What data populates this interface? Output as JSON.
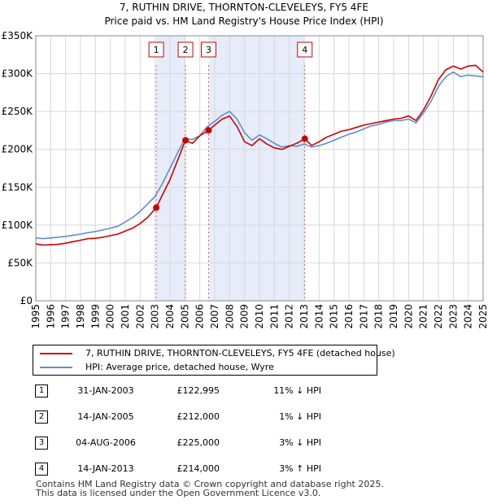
{
  "chart_data": {
    "type": "line",
    "title": [
      "7, RUTHIN DRIVE, THORNTON-CLEVELEYS, FY5 4FE",
      "Price paid vs. HM Land Registry's House Price Index (HPI)"
    ],
    "xlabel": "",
    "ylabel": "",
    "xlim": [
      1995,
      2025
    ],
    "ylim": [
      0,
      350000
    ],
    "x_ticks": [
      "1995",
      "1996",
      "1997",
      "1998",
      "1999",
      "2000",
      "2001",
      "2002",
      "2003",
      "2004",
      "2005",
      "2006",
      "2007",
      "2008",
      "2009",
      "2010",
      "2011",
      "2012",
      "2013",
      "2014",
      "2015",
      "2016",
      "2017",
      "2018",
      "2019",
      "2020",
      "2021",
      "2022",
      "2023",
      "2024",
      "2025"
    ],
    "y_ticks": [
      {
        "value": 0,
        "label": "£0"
      },
      {
        "value": 50000,
        "label": "£50K"
      },
      {
        "value": 100000,
        "label": "£100K"
      },
      {
        "value": 150000,
        "label": "£150K"
      },
      {
        "value": 200000,
        "label": "£200K"
      },
      {
        "value": 250000,
        "label": "£250K"
      },
      {
        "value": 300000,
        "label": "£300K"
      },
      {
        "value": 350000,
        "label": "£350K"
      }
    ],
    "shaded_ranges": [
      [
        2003.08,
        2005.04
      ],
      [
        2006.59,
        2013.04
      ]
    ],
    "series": [
      {
        "name": "7, RUTHIN DRIVE, THORNTON-CLEVELEYS, FY5 4FE (detached house)",
        "color": "#cc0000",
        "x": [
          1995.0,
          1995.5,
          1996.0,
          1996.5,
          1997.0,
          1997.5,
          1998.0,
          1998.5,
          1999.0,
          1999.5,
          2000.0,
          2000.5,
          2001.0,
          2001.5,
          2002.0,
          2002.5,
          2003.08,
          2003.5,
          2004.0,
          2004.5,
          2005.04,
          2005.5,
          2006.0,
          2006.59,
          2007.0,
          2007.5,
          2008.0,
          2008.5,
          2009.0,
          2009.5,
          2010.0,
          2010.5,
          2011.0,
          2011.5,
          2012.0,
          2012.5,
          2013.04,
          2013.5,
          2014.0,
          2014.5,
          2015.0,
          2015.5,
          2016.0,
          2016.5,
          2017.0,
          2017.5,
          2018.0,
          2018.5,
          2019.0,
          2019.5,
          2020.0,
          2020.5,
          2021.0,
          2021.5,
          2022.0,
          2022.5,
          2023.0,
          2023.5,
          2024.0,
          2024.5,
          2025.0
        ],
        "values": [
          75000,
          73500,
          74000,
          74500,
          76000,
          78000,
          80000,
          82000,
          82500,
          84000,
          86000,
          88000,
          92000,
          96000,
          102000,
          110000,
          122995,
          140000,
          160000,
          185000,
          212000,
          208000,
          218000,
          225000,
          232000,
          240000,
          244000,
          230000,
          210000,
          205000,
          214000,
          207000,
          202000,
          200000,
          204000,
          208000,
          214000,
          205000,
          210000,
          216000,
          220000,
          224000,
          226000,
          229000,
          232000,
          234000,
          236000,
          238000,
          240000,
          241000,
          244000,
          238000,
          252000,
          270000,
          292000,
          305000,
          310000,
          306000,
          310000,
          311000,
          302000
        ]
      },
      {
        "name": "HPI: Average price, detached house, Wyre",
        "color": "#5b8fd0",
        "x": [
          1995.0,
          1995.5,
          1996.0,
          1996.5,
          1997.0,
          1997.5,
          1998.0,
          1998.5,
          1999.0,
          1999.5,
          2000.0,
          2000.5,
          2001.0,
          2001.5,
          2002.0,
          2002.5,
          2003.0,
          2003.5,
          2004.0,
          2004.5,
          2005.0,
          2005.5,
          2006.0,
          2006.5,
          2007.0,
          2007.5,
          2008.0,
          2008.5,
          2009.0,
          2009.5,
          2010.0,
          2010.5,
          2011.0,
          2011.5,
          2012.0,
          2012.5,
          2013.0,
          2013.5,
          2014.0,
          2014.5,
          2015.0,
          2015.5,
          2016.0,
          2016.5,
          2017.0,
          2017.5,
          2018.0,
          2018.5,
          2019.0,
          2019.5,
          2020.0,
          2020.5,
          2021.0,
          2021.5,
          2022.0,
          2022.5,
          2023.0,
          2023.5,
          2024.0,
          2024.5,
          2025.0
        ],
        "values": [
          83000,
          82000,
          83000,
          84000,
          85000,
          86500,
          88000,
          90000,
          91500,
          93500,
          96000,
          98500,
          104000,
          110000,
          118000,
          128000,
          138000,
          155000,
          175000,
          195000,
          214000,
          213000,
          218000,
          230000,
          237000,
          245000,
          250000,
          240000,
          222000,
          212000,
          219000,
          214000,
          208000,
          203000,
          205000,
          204000,
          207000,
          203000,
          205000,
          208000,
          212000,
          216000,
          220000,
          223000,
          227000,
          231000,
          233000,
          236000,
          238000,
          238000,
          240000,
          235000,
          248000,
          263000,
          283000,
          296000,
          302000,
          296000,
          298000,
          297000,
          296000
        ]
      }
    ],
    "events": [
      {
        "label": "1",
        "x": 2003.08,
        "value": 122995
      },
      {
        "label": "2",
        "x": 2005.04,
        "value": 212000
      },
      {
        "label": "3",
        "x": 2006.59,
        "value": 225000
      },
      {
        "label": "4",
        "x": 2013.04,
        "value": 214000
      }
    ]
  },
  "legend": {
    "items": [
      {
        "label": "7, RUTHIN DRIVE, THORNTON-CLEVELEYS, FY5 4FE (detached house)",
        "color": "#cc0000"
      },
      {
        "label": "HPI: Average price, detached house, Wyre",
        "color": "#5b8fd0"
      }
    ]
  },
  "transactions": [
    {
      "num": "1",
      "date": "31-JAN-2003",
      "price": "£122,995",
      "hpi": "11% ↓ HPI"
    },
    {
      "num": "2",
      "date": "14-JAN-2005",
      "price": "£212,000",
      "hpi": "1% ↓ HPI"
    },
    {
      "num": "3",
      "date": "04-AUG-2006",
      "price": "£225,000",
      "hpi": "3% ↓ HPI"
    },
    {
      "num": "4",
      "date": "14-JAN-2013",
      "price": "£214,000",
      "hpi": "3% ↑ HPI"
    }
  ],
  "footer": {
    "line1": "Contains HM Land Registry data © Crown copyright and database right 2025.",
    "line2": "This data is licensed under the Open Government Licence v3.0."
  }
}
